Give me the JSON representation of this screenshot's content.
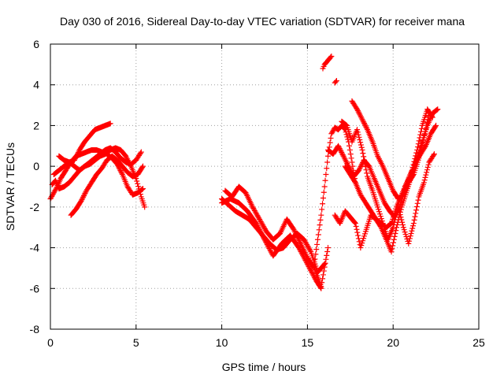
{
  "chart_data": {
    "type": "scatter",
    "title": "Day 030 of 2016, Sidereal Day-to-day VTEC variation (SDTVAR) for receiver mana",
    "xlabel": "GPS time / hours",
    "ylabel": "SDTVAR / TECUs",
    "xlim": [
      0,
      25
    ],
    "ylim": [
      -8,
      6
    ],
    "xticks": [
      0,
      5,
      10,
      15,
      20,
      25
    ],
    "xtick_labels": [
      "0",
      "5",
      "10",
      "15",
      "20",
      "25"
    ],
    "yticks": [
      -8,
      -6,
      -4,
      -2,
      0,
      2,
      4,
      6
    ],
    "ytick_labels": [
      "-8",
      "-6",
      "-4",
      "-2",
      "0",
      "2",
      "4",
      "6"
    ],
    "grid": true,
    "marker": "+",
    "color": "#ff0000",
    "series": [
      {
        "name": "s1",
        "x": [
          0.1,
          0.3,
          0.5,
          0.8,
          1.1,
          1.4,
          1.7,
          2.0,
          2.3,
          2.6,
          2.9,
          3.2,
          3.5,
          3.8,
          4.1,
          4.4,
          4.7,
          5.0,
          5.3
        ],
        "y": [
          -0.9,
          -0.7,
          -1.1,
          -1.0,
          -0.8,
          -0.5,
          -0.2,
          0.0,
          0.2,
          0.4,
          0.6,
          0.8,
          0.9,
          0.7,
          0.4,
          0.2,
          0.1,
          0.3,
          0.7
        ]
      },
      {
        "name": "s2",
        "x": [
          0.5,
          0.8,
          1.1,
          1.4,
          1.7,
          2.0,
          2.3,
          2.6,
          2.9,
          3.2,
          3.5
        ],
        "y": [
          0.5,
          0.3,
          0.2,
          0.3,
          0.8,
          1.2,
          1.5,
          1.8,
          1.9,
          2.0,
          2.1
        ]
      },
      {
        "name": "s3",
        "x": [
          1.2,
          1.5,
          1.8,
          2.1,
          2.4,
          2.7,
          3.0,
          3.3,
          3.6,
          3.9,
          4.2,
          4.5,
          4.8,
          5.1,
          5.4
        ],
        "y": [
          -2.4,
          -2.1,
          -1.7,
          -1.2,
          -0.8,
          -0.4,
          -0.1,
          0.3,
          0.5,
          0.3,
          0.0,
          -0.3,
          -0.5,
          -0.4,
          0.0
        ]
      },
      {
        "name": "s4",
        "x": [
          0.0,
          0.2,
          0.4,
          0.6,
          0.9,
          1.2,
          1.5,
          1.8,
          2.1,
          2.4,
          2.7,
          3.0,
          3.3,
          3.6,
          3.9,
          4.2,
          4.5,
          4.8,
          5.1,
          5.4
        ],
        "y": [
          -1.6,
          -1.3,
          -1.0,
          -0.6,
          -0.2,
          0.2,
          0.5,
          0.6,
          0.7,
          0.8,
          0.8,
          0.7,
          0.6,
          0.4,
          0.1,
          -0.4,
          -1.0,
          -1.4,
          -1.3,
          -1.1
        ]
      },
      {
        "name": "s5",
        "x": [
          0.2,
          0.5,
          0.8,
          1.1,
          1.4,
          1.7,
          2.0,
          2.3,
          2.6,
          2.9,
          3.2,
          3.5,
          3.8,
          4.1,
          4.4,
          4.7,
          5.0,
          5.3,
          5.5
        ],
        "y": [
          -0.4,
          -0.2,
          0.0,
          0.2,
          0.0,
          -0.2,
          0.0,
          0.1,
          0.3,
          0.5,
          0.6,
          0.8,
          0.9,
          0.8,
          0.5,
          0.0,
          -0.6,
          -1.5,
          -2.0
        ]
      },
      {
        "name": "s6",
        "x": [
          10.0,
          10.4,
          10.8,
          11.2,
          11.6,
          12.0,
          12.4,
          12.8,
          13.2,
          13.6,
          14.0,
          14.4,
          14.8,
          15.2,
          15.6,
          16.0
        ],
        "y": [
          -1.6,
          -1.9,
          -2.2,
          -2.4,
          -2.6,
          -3.0,
          -3.4,
          -3.8,
          -4.1,
          -4.0,
          -3.6,
          -3.3,
          -3.6,
          -4.2,
          -5.2,
          -4.8
        ]
      },
      {
        "name": "s7",
        "x": [
          10.2,
          10.6,
          11.0,
          11.4,
          11.8,
          12.2,
          12.6,
          13.0,
          13.4,
          13.8,
          14.2,
          14.6,
          15.0,
          15.4,
          15.8,
          16.2
        ],
        "y": [
          -1.2,
          -1.5,
          -1.0,
          -1.3,
          -2.0,
          -2.6,
          -3.2,
          -3.6,
          -3.3,
          -2.6,
          -3.1,
          -3.8,
          -4.5,
          -5.0,
          -5.9,
          -4.0
        ]
      },
      {
        "name": "s8",
        "x": [
          10.0,
          10.5,
          11.0,
          11.5,
          12.0,
          12.5,
          13.0,
          13.5,
          14.0,
          14.5,
          15.0,
          15.5,
          15.8
        ],
        "y": [
          -1.8,
          -1.6,
          -1.8,
          -2.2,
          -2.8,
          -3.6,
          -4.4,
          -3.8,
          -3.4,
          -4.0,
          -4.8,
          -5.6,
          -6.0
        ]
      },
      {
        "name": "s9",
        "x": [
          15.4,
          15.6,
          15.8,
          16.0,
          16.2,
          16.4,
          16.6,
          16.8,
          17.0,
          17.2,
          17.4,
          17.6,
          17.8
        ],
        "y": [
          -4.8,
          -3.6,
          -2.4,
          -1.0,
          0.5,
          1.6,
          1.9,
          1.8,
          2.0,
          1.8,
          1.2,
          0.2,
          -0.8
        ]
      },
      {
        "name": "s10",
        "x": [
          15.9,
          16.0,
          16.1,
          16.2,
          16.3,
          16.4
        ],
        "y": [
          4.8,
          5.0,
          5.1,
          5.2,
          5.3,
          5.4
        ]
      },
      {
        "name": "s11",
        "x": [
          16.6,
          16.7
        ],
        "y": [
          4.1,
          4.2
        ]
      },
      {
        "name": "s12",
        "x": [
          16.2,
          16.5,
          16.8,
          17.1,
          17.4,
          17.7,
          18.0,
          18.3,
          18.6,
          18.9,
          19.2,
          19.5,
          19.8,
          20.1,
          20.4,
          20.7,
          21.0,
          21.3,
          21.6,
          21.9,
          22.2,
          22.5
        ],
        "y": [
          0.8,
          0.6,
          1.0,
          0.5,
          0.0,
          -0.5,
          -0.2,
          0.3,
          0.0,
          -0.6,
          -1.2,
          -1.8,
          -2.2,
          -2.5,
          -2.0,
          -1.0,
          -0.5,
          0.2,
          0.6,
          1.0,
          1.6,
          2.0
        ]
      },
      {
        "name": "s13",
        "x": [
          17.0,
          17.3,
          17.6,
          17.9,
          18.2,
          18.5,
          18.8,
          19.1,
          19.4,
          19.7,
          20.0,
          20.3,
          20.6,
          20.9,
          21.2,
          21.5,
          21.8,
          22.1,
          22.4
        ],
        "y": [
          2.2,
          2.0,
          1.2,
          1.8,
          0.8,
          -0.5,
          -1.2,
          -2.0,
          -2.8,
          -3.6,
          -3.0,
          -2.0,
          -3.0,
          -3.8,
          -2.8,
          -1.5,
          -0.8,
          0.2,
          0.6
        ]
      },
      {
        "name": "s14",
        "x": [
          16.6,
          16.9,
          17.2,
          17.5,
          17.8,
          18.1,
          18.4,
          18.7,
          19.0,
          19.3,
          19.6,
          19.9,
          20.2,
          20.5,
          20.8,
          21.1,
          21.4,
          21.7,
          22.0,
          22.3,
          22.6
        ],
        "y": [
          -2.4,
          -2.8,
          -2.2,
          -2.5,
          -2.8,
          -4.0,
          -3.2,
          -2.4,
          -2.6,
          -3.0,
          -3.6,
          -4.2,
          -3.0,
          -2.0,
          -1.2,
          -0.4,
          0.4,
          1.2,
          2.0,
          2.6,
          2.8
        ]
      },
      {
        "name": "s15",
        "x": [
          17.6,
          17.9,
          18.2,
          18.5,
          18.8,
          19.1,
          19.4,
          19.7,
          20.0,
          20.3,
          20.6,
          20.9,
          21.2,
          21.5,
          21.8,
          22.1
        ],
        "y": [
          3.2,
          2.8,
          2.3,
          1.8,
          1.2,
          0.5,
          0.0,
          -0.6,
          -1.2,
          -1.6,
          -1.4,
          -0.8,
          -0.4,
          0.4,
          1.4,
          2.6
        ]
      },
      {
        "name": "s16",
        "x": [
          17.2,
          17.5,
          17.8,
          18.1,
          18.4,
          18.7,
          19.0,
          19.3,
          19.6,
          19.9,
          20.2,
          20.5,
          20.8,
          21.1,
          21.4,
          21.7,
          22.0,
          22.3
        ],
        "y": [
          0.0,
          -0.4,
          -0.8,
          -1.4,
          -1.8,
          -2.2,
          -2.6,
          -2.8,
          -3.0,
          -2.8,
          -2.0,
          -1.4,
          -0.8,
          -0.2,
          0.8,
          2.0,
          2.8,
          2.4
        ]
      }
    ]
  }
}
